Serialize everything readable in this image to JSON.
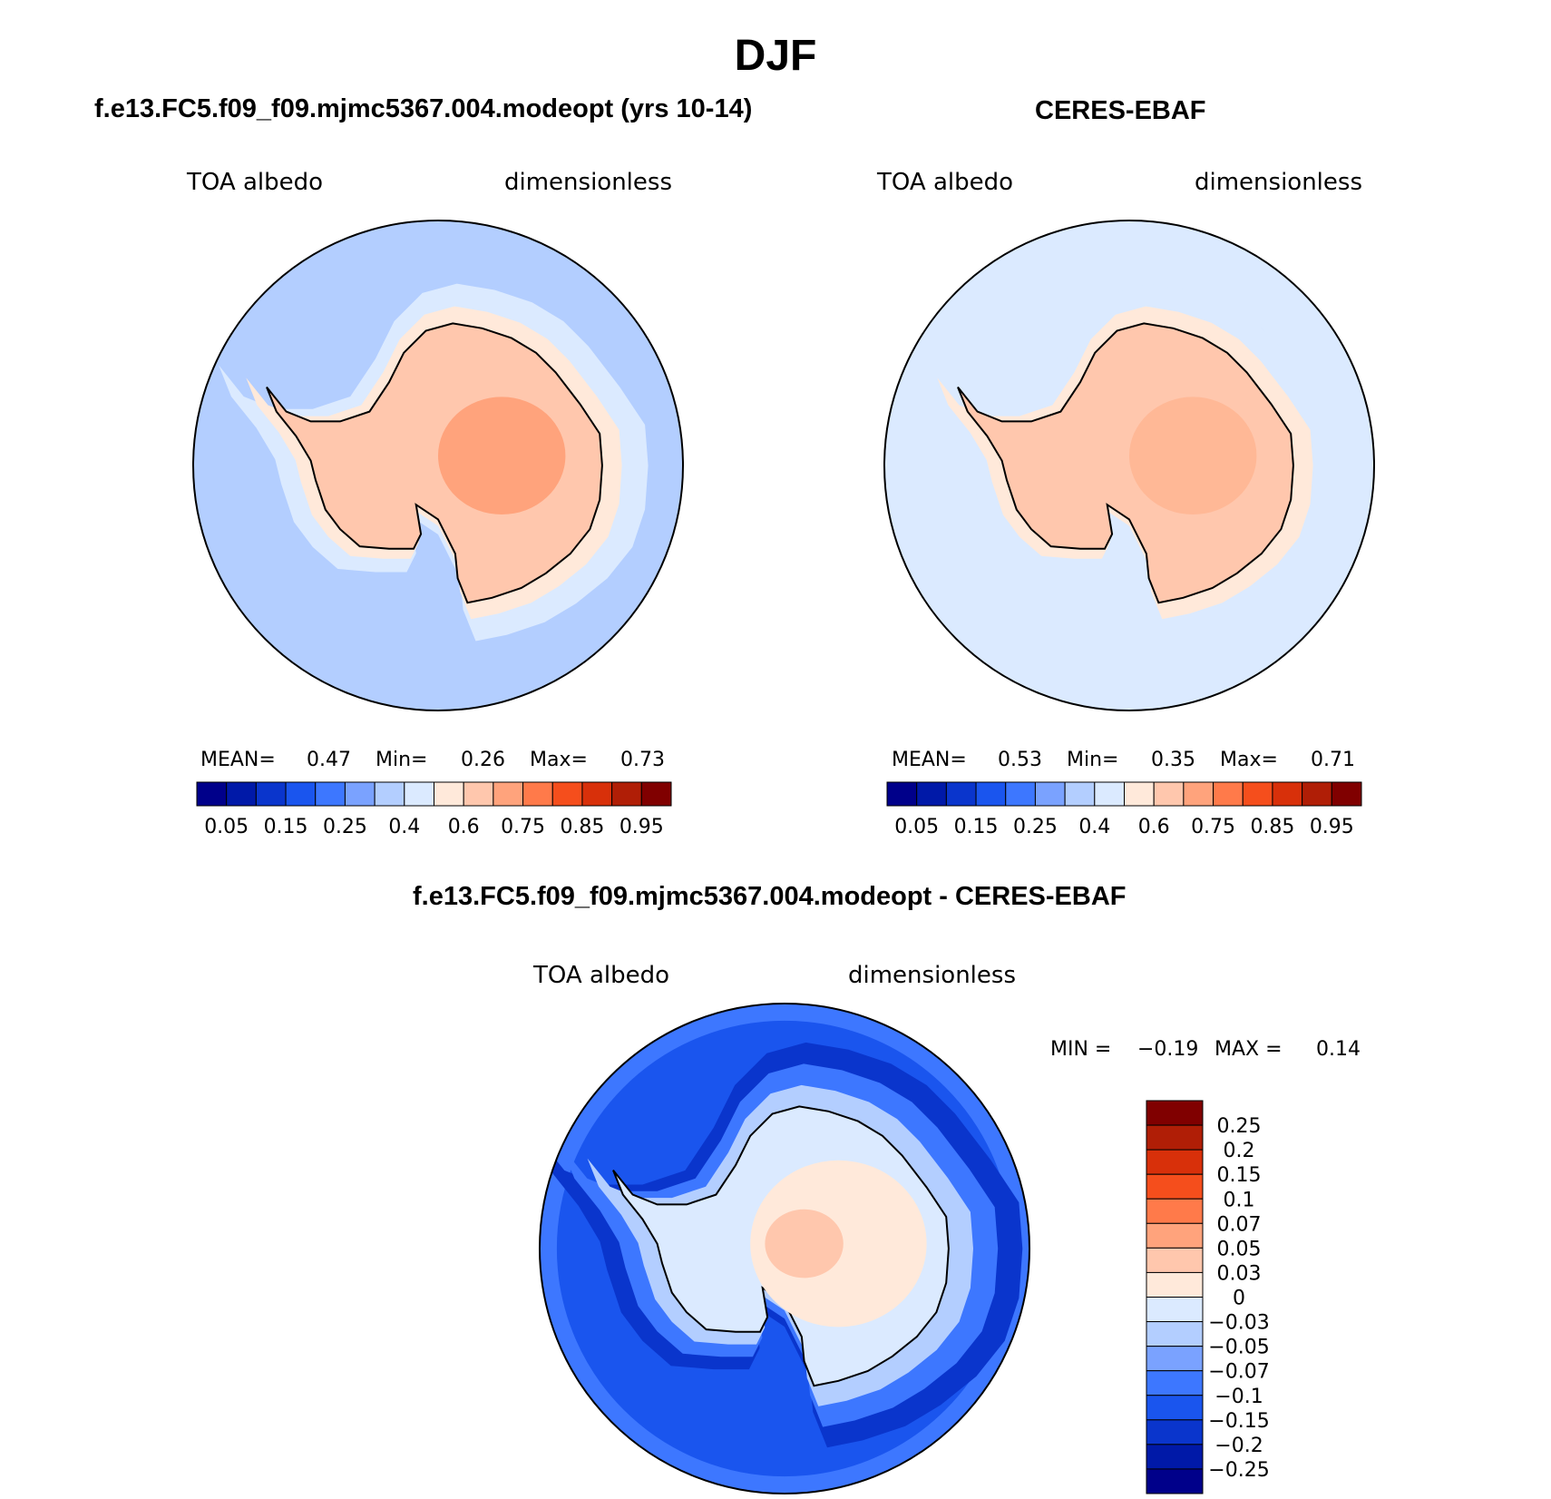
{
  "figure": {
    "title": "DJF",
    "variable": "TOA albedo",
    "units": "dimensionless"
  },
  "chart_data": [
    {
      "type": "polar-map",
      "projection": "south-polar-stereographic",
      "title": "f.e13.FC5.f09_f09.mjmc5367.004.modeopt (yrs 10-14)",
      "left_label": "TOA albedo",
      "right_label": "dimensionless",
      "stats": {
        "mean_label": "MEAN=",
        "mean": "0.47",
        "min_label": "Min=",
        "min": "0.26",
        "max_label": "Max=",
        "max": "0.73"
      },
      "levels": [
        "0.05",
        "0.15",
        "0.25",
        "0.4",
        "0.6",
        "0.75",
        "0.85",
        "0.95"
      ],
      "colors": [
        "#00008a",
        "#0019a8",
        "#0a35cc",
        "#1a55ee",
        "#3d77ff",
        "#7aa2ff",
        "#b3ceff",
        "#dbeaff",
        "#ffe9da",
        "#ffc7ad",
        "#ffa37c",
        "#ff7a4a",
        "#f54e1c",
        "#d8300a",
        "#b01e06",
        "#800000"
      ],
      "ocean_color": "#b3ceff",
      "ice_color": "#ffc7ad",
      "ice_core_color": "#ffa37c"
    },
    {
      "type": "polar-map",
      "projection": "south-polar-stereographic",
      "title": "CERES-EBAF",
      "left_label": "TOA albedo",
      "right_label": "dimensionless",
      "stats": {
        "mean_label": "MEAN=",
        "mean": "0.53",
        "min_label": "Min=",
        "min": "0.35",
        "max_label": "Max=",
        "max": "0.71"
      },
      "levels": [
        "0.05",
        "0.15",
        "0.25",
        "0.4",
        "0.6",
        "0.75",
        "0.85",
        "0.95"
      ],
      "colors": [
        "#00008a",
        "#0019a8",
        "#0a35cc",
        "#1a55ee",
        "#3d77ff",
        "#7aa2ff",
        "#b3ceff",
        "#dbeaff",
        "#ffe9da",
        "#ffc7ad",
        "#ffa37c",
        "#ff7a4a",
        "#f54e1c",
        "#d8300a",
        "#b01e06",
        "#800000"
      ],
      "ocean_color": "#dbeaff",
      "ice_color": "#ffc7ad",
      "ice_core_color": "#ffb896"
    },
    {
      "type": "polar-map",
      "projection": "south-polar-stereographic",
      "title": "f.e13.FC5.f09_f09.mjmc5367.004.modeopt - CERES-EBAF",
      "left_label": "TOA albedo",
      "right_label": "dimensionless",
      "stats": {
        "min_label": "MIN =",
        "min": "−0.19",
        "max_label": "MAX =",
        "max": "0.14"
      },
      "levels": [
        "0.25",
        "0.2",
        "0.15",
        "0.1",
        "0.07",
        "0.05",
        "0.03",
        "0",
        "−0.03",
        "−0.05",
        "−0.07",
        "−0.1",
        "−0.15",
        "−0.2",
        "−0.25"
      ],
      "colors": [
        "#800000",
        "#b01e06",
        "#d8300a",
        "#f54e1c",
        "#ff7a4a",
        "#ffa37c",
        "#ffc7ad",
        "#ffe9da",
        "#dbeaff",
        "#b3ceff",
        "#7aa2ff",
        "#3d77ff",
        "#1a55ee",
        "#0a35cc",
        "#0019a8",
        "#00008a"
      ],
      "ocean_color": "#1a55ee",
      "ice_color": "#ffe9da",
      "ice_core_color": "#ffc7ad"
    }
  ]
}
